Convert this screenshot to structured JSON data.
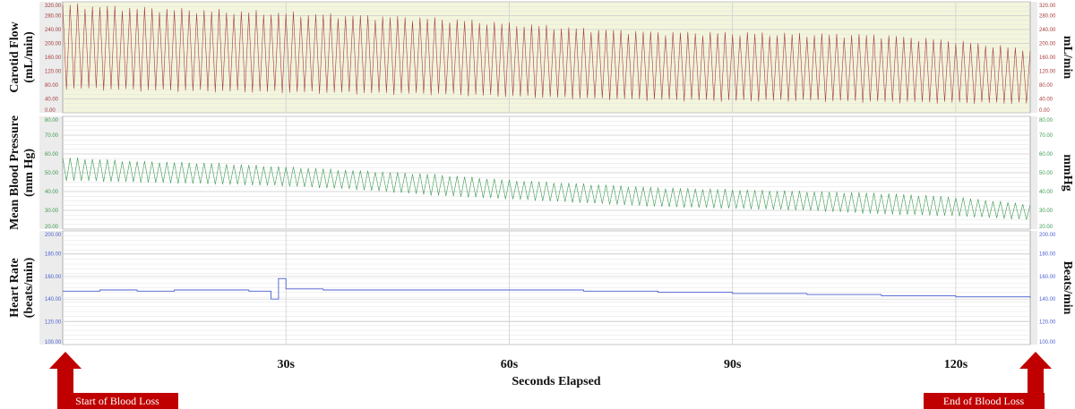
{
  "chart_data": {
    "type": "line",
    "xlabel": "Seconds Elapsed",
    "x_ticks": [
      {
        "value": 30,
        "label": "30s"
      },
      {
        "value": 60,
        "label": "60s"
      },
      {
        "value": 90,
        "label": "90s"
      },
      {
        "value": 120,
        "label": "120s"
      }
    ],
    "xlim": [
      0,
      130
    ],
    "panels": [
      {
        "id": "flow",
        "label_line1": "Carotid Flow",
        "label_line2": "(mL/min)",
        "unit_label": "mL/min",
        "color": "#a83a3a",
        "background": "#f3f5dc",
        "ylim": [
          0,
          320
        ],
        "y_ticks": [
          "0.00",
          "40.00",
          "80.00",
          "120.00",
          "160.00",
          "200.00",
          "240.00",
          "280.00",
          "320.00"
        ],
        "envelope": {
          "x": [
            0,
            10,
            30,
            50,
            60,
            70,
            80,
            90,
            100,
            110,
            120,
            130
          ],
          "upper": [
            310,
            300,
            285,
            270,
            255,
            240,
            230,
            228,
            225,
            222,
            205,
            180
          ],
          "lower": [
            72,
            66,
            60,
            55,
            48,
            42,
            38,
            35,
            36,
            32,
            30,
            28
          ]
        }
      },
      {
        "id": "bp",
        "label_line1": "Mean Blood Pressure",
        "label_line2": "(mm Hg)",
        "unit_label": "mmHg",
        "color": "#3a9a4e",
        "background": "#ffffff",
        "ylim": [
          20,
          80
        ],
        "y_ticks": [
          "20.00",
          "30.00",
          "40.00",
          "50.00",
          "60.00",
          "70.00",
          "80.00"
        ],
        "envelope": {
          "x": [
            0,
            10,
            20,
            30,
            40,
            50,
            60,
            70,
            80,
            90,
            100,
            110,
            120,
            130
          ],
          "upper": [
            58,
            56,
            55,
            53,
            51,
            49,
            46,
            44,
            42,
            41,
            40,
            39,
            37,
            33
          ],
          "lower": [
            46,
            45,
            44,
            43,
            41,
            38,
            36,
            34,
            32,
            31,
            30,
            28,
            27,
            25
          ]
        }
      },
      {
        "id": "hr",
        "label_line1": "Heart Rate",
        "label_line2": "(beats/min)",
        "unit_label": "Beats/min",
        "color": "#4a5fd0",
        "background": "#ffffff",
        "ylim": [
          100,
          200
        ],
        "y_ticks": [
          "100.00",
          "120.00",
          "140.00",
          "160.00",
          "180.00",
          "200.00"
        ],
        "series": {
          "x": [
            0,
            5,
            10,
            15,
            20,
            25,
            28,
            29,
            30,
            35,
            40,
            50,
            60,
            70,
            80,
            90,
            100,
            110,
            120,
            130
          ],
          "values": [
            147,
            148,
            147,
            148,
            148,
            147,
            140,
            158,
            149,
            148,
            148,
            148,
            148,
            147,
            146,
            145,
            144,
            143,
            142,
            141
          ]
        }
      }
    ]
  },
  "annotations": {
    "start_label": "Start of Blood Loss",
    "end_label": "End of Blood Loss",
    "arrow_color": "#c00000"
  }
}
